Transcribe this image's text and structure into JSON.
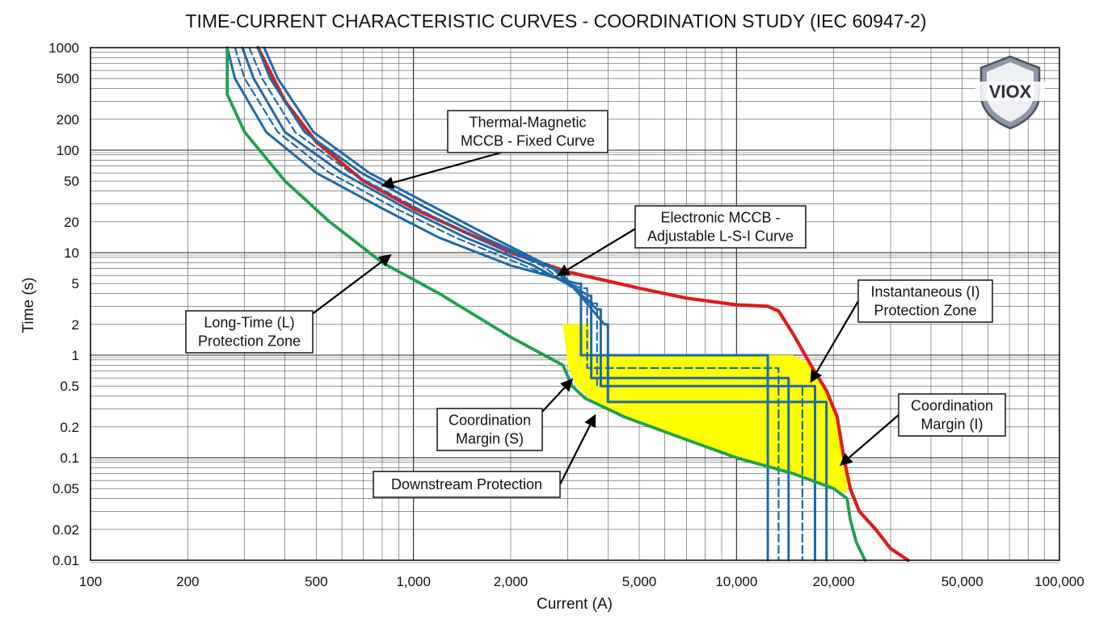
{
  "chart_data": {
    "type": "line",
    "title": "TIME-CURRENT CHARACTERISTIC CURVES - COORDINATION STUDY (IEC 60947-2)",
    "xlabel": "Current (A)",
    "ylabel": "Time (s)",
    "x_scale": "log",
    "y_scale": "log",
    "xlim": [
      100,
      100000
    ],
    "ylim": [
      0.01,
      1000
    ],
    "x_ticks": [
      {
        "value": 100,
        "label": "100"
      },
      {
        "value": 200,
        "label": "200"
      },
      {
        "value": 500,
        "label": "500"
      },
      {
        "value": 1000,
        "label": "1,000"
      },
      {
        "value": 2000,
        "label": "2,000"
      },
      {
        "value": 5000,
        "label": "5,000"
      },
      {
        "value": 10000,
        "label": "10,000"
      },
      {
        "value": 20000,
        "label": "20,000"
      },
      {
        "value": 50000,
        "label": "50,000"
      },
      {
        "value": 100000,
        "label": "100,000"
      }
    ],
    "y_ticks": [
      {
        "value": 1000,
        "label": "1000"
      },
      {
        "value": 500,
        "label": "500"
      },
      {
        "value": 200,
        "label": "200"
      },
      {
        "value": 100,
        "label": "100"
      },
      {
        "value": 50,
        "label": "50"
      },
      {
        "value": 20,
        "label": "20"
      },
      {
        "value": 10,
        "label": "10"
      },
      {
        "value": 5,
        "label": "5"
      },
      {
        "value": 2,
        "label": "2"
      },
      {
        "value": 1,
        "label": "1"
      },
      {
        "value": 0.5,
        "label": "0.5"
      },
      {
        "value": 0.2,
        "label": "0.2"
      },
      {
        "value": 0.1,
        "label": "0.1"
      },
      {
        "value": 0.05,
        "label": "0.05"
      },
      {
        "value": 0.02,
        "label": "0.02"
      },
      {
        "value": 0.01,
        "label": "0.01"
      }
    ],
    "grid": true,
    "colors": {
      "thermal_magnetic": "#e01b1b",
      "electronic": "#1f6aa8",
      "downstream": "#1fa050",
      "margin_fill": "#ffff00"
    },
    "series": [
      {
        "name": "Thermal-Magnetic MCCB - Fixed Curve",
        "color": "#e01b1b",
        "style": "solid",
        "points": [
          [
            330,
            1000
          ],
          [
            400,
            300
          ],
          [
            500,
            120
          ],
          [
            700,
            50
          ],
          [
            1000,
            27
          ],
          [
            1500,
            15
          ],
          [
            2000,
            10
          ],
          [
            3000,
            6.5
          ],
          [
            5000,
            4.5
          ],
          [
            7000,
            3.6
          ],
          [
            10000,
            3.1
          ],
          [
            12500,
            3
          ],
          [
            13500,
            2.7
          ],
          [
            15000,
            1.6
          ],
          [
            17000,
            0.8
          ],
          [
            19000,
            0.45
          ],
          [
            20500,
            0.25
          ],
          [
            21500,
            0.1
          ],
          [
            22500,
            0.05
          ],
          [
            24000,
            0.03
          ],
          [
            27000,
            0.02
          ],
          [
            30000,
            0.013
          ],
          [
            34000,
            0.01
          ]
        ]
      },
      {
        "name": "Electronic MCCB - Adjustable L-S-I Curve (setting 1)",
        "color": "#1f6aa8",
        "style": "solid",
        "points": [
          [
            265,
            1000
          ],
          [
            280,
            500
          ],
          [
            350,
            150
          ],
          [
            500,
            60
          ],
          [
            800,
            27
          ],
          [
            1200,
            14
          ],
          [
            2000,
            7.5
          ],
          [
            3200,
            5
          ],
          [
            3300,
            5
          ],
          [
            3300,
            1
          ],
          [
            12500,
            1
          ],
          [
            12500,
            0.01
          ]
        ]
      },
      {
        "name": "Electronic MCCB - Adjustable L-S-I Curve (setting 2)",
        "color": "#1f6aa8",
        "style": "dashed",
        "points": [
          [
            280,
            1000
          ],
          [
            300,
            500
          ],
          [
            380,
            150
          ],
          [
            550,
            60
          ],
          [
            880,
            27
          ],
          [
            1350,
            14
          ],
          [
            2200,
            7.5
          ],
          [
            3300,
            4.5
          ],
          [
            3450,
            4.5
          ],
          [
            3450,
            0.75
          ],
          [
            13500,
            0.75
          ],
          [
            13500,
            0.01
          ]
        ]
      },
      {
        "name": "Electronic MCCB - Adjustable L-S-I Curve (setting 3)",
        "color": "#1f6aa8",
        "style": "solid",
        "points": [
          [
            295,
            1000
          ],
          [
            320,
            500
          ],
          [
            400,
            150
          ],
          [
            600,
            60
          ],
          [
            950,
            27
          ],
          [
            1450,
            14
          ],
          [
            2350,
            7.5
          ],
          [
            3500,
            3.8
          ],
          [
            3550,
            3.8
          ],
          [
            3550,
            0.6
          ],
          [
            14500,
            0.6
          ],
          [
            14500,
            0.01
          ]
        ]
      },
      {
        "name": "Electronic MCCB - Adjustable L-S-I Curve (setting 4)",
        "color": "#1f6aa8",
        "style": "dashed",
        "points": [
          [
            310,
            1000
          ],
          [
            340,
            500
          ],
          [
            430,
            150
          ],
          [
            640,
            60
          ],
          [
            1030,
            27
          ],
          [
            1550,
            14
          ],
          [
            2500,
            7.5
          ],
          [
            3600,
            3.2
          ],
          [
            3700,
            3.2
          ],
          [
            3700,
            0.5
          ],
          [
            16000,
            0.5
          ],
          [
            16000,
            0.01
          ]
        ]
      },
      {
        "name": "Electronic MCCB - Adjustable L-S-I Curve (setting 5)",
        "color": "#1f6aa8",
        "style": "solid",
        "points": [
          [
            330,
            1000
          ],
          [
            360,
            500
          ],
          [
            460,
            150
          ],
          [
            690,
            60
          ],
          [
            1100,
            27
          ],
          [
            1650,
            14
          ],
          [
            2700,
            7
          ],
          [
            3700,
            2.8
          ],
          [
            3800,
            2.8
          ],
          [
            3800,
            0.5
          ],
          [
            17500,
            0.5
          ],
          [
            17500,
            0.01
          ]
        ]
      },
      {
        "name": "Electronic MCCB - Adjustable L-S-I Curve (setting 6)",
        "color": "#1f6aa8",
        "style": "solid",
        "points": [
          [
            345,
            1000
          ],
          [
            380,
            500
          ],
          [
            490,
            150
          ],
          [
            730,
            60
          ],
          [
            1180,
            27
          ],
          [
            1760,
            14
          ],
          [
            2850,
            6.5
          ],
          [
            3900,
            2
          ],
          [
            4000,
            2
          ],
          [
            4000,
            0.35
          ],
          [
            19000,
            0.35
          ],
          [
            19000,
            0.01
          ]
        ]
      },
      {
        "name": "Downstream Protection",
        "color": "#1fa050",
        "style": "solid",
        "points": [
          [
            265,
            1000
          ],
          [
            265,
            350
          ],
          [
            300,
            150
          ],
          [
            400,
            50
          ],
          [
            550,
            20
          ],
          [
            800,
            8
          ],
          [
            1200,
            4
          ],
          [
            2000,
            1.5
          ],
          [
            2900,
            0.8
          ],
          [
            3100,
            0.5
          ],
          [
            3400,
            0.38
          ],
          [
            4500,
            0.25
          ],
          [
            7000,
            0.15
          ],
          [
            10000,
            0.1
          ],
          [
            15000,
            0.07
          ],
          [
            20000,
            0.05
          ],
          [
            22000,
            0.04
          ],
          [
            22500,
            0.025
          ],
          [
            23500,
            0.015
          ],
          [
            25000,
            0.01
          ]
        ]
      }
    ],
    "shaded_region": {
      "name": "Coordination Margin",
      "color": "#ffff00",
      "points": [
        [
          2900,
          2
        ],
        [
          3000,
          0.8
        ],
        [
          3200,
          0.5
        ],
        [
          3500,
          0.38
        ],
        [
          4500,
          0.25
        ],
        [
          7000,
          0.15
        ],
        [
          10000,
          0.1
        ],
        [
          15000,
          0.07
        ],
        [
          20000,
          0.05
        ],
        [
          22000,
          0.045
        ],
        [
          22000,
          0.08
        ],
        [
          20500,
          0.25
        ],
        [
          19000,
          0.45
        ],
        [
          17000,
          0.8
        ],
        [
          15000,
          1
        ],
        [
          3500,
          1
        ],
        [
          3500,
          2
        ]
      ]
    },
    "annotations": [
      {
        "id": "thermal",
        "lines": [
          "Thermal-Magnetic",
          "MCCB - Fixed Curve"
        ],
        "target": [
          800,
          45
        ]
      },
      {
        "id": "electronic",
        "lines": [
          "Electronic MCCB -",
          "Adjustable L-S-I Curve"
        ],
        "target": [
          2800,
          6
        ]
      },
      {
        "id": "instantaneous",
        "lines": [
          "Instantaneous (I)",
          "Protection Zone"
        ],
        "target": [
          17000,
          0.55
        ]
      },
      {
        "id": "longtime",
        "lines": [
          "Long-Time (L)",
          "Protection Zone"
        ],
        "target": [
          850,
          9.5
        ]
      },
      {
        "id": "coord_s",
        "lines": [
          "Coordination",
          "Margin (S)"
        ],
        "target": [
          3100,
          0.58
        ]
      },
      {
        "id": "coord_i",
        "lines": [
          "Coordination",
          "Margin (I)"
        ],
        "target": [
          21000,
          0.085
        ]
      },
      {
        "id": "downstream",
        "lines": [
          "Downstream Protection"
        ],
        "target": [
          3650,
          0.26
        ]
      }
    ]
  },
  "logo": {
    "text": "VIOX"
  }
}
